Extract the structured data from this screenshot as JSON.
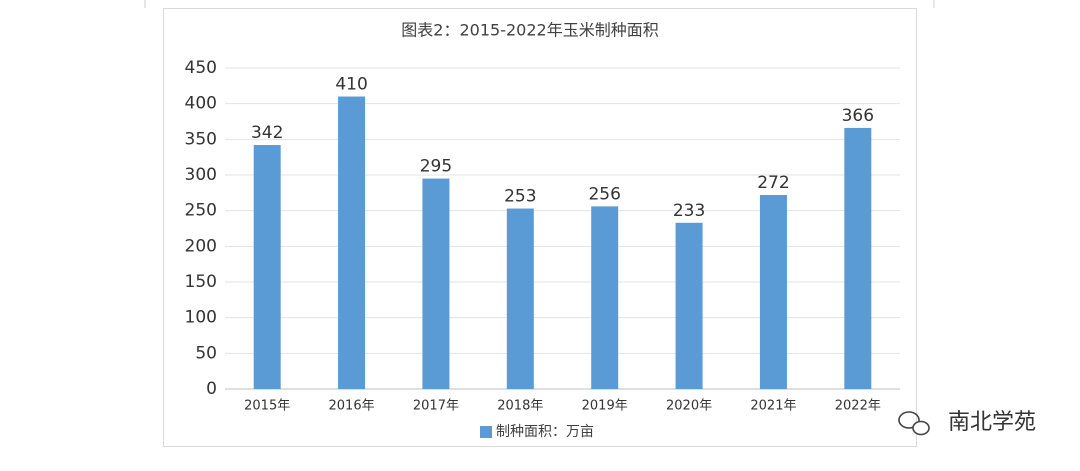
{
  "chart_data": {
    "type": "bar",
    "title": "图表2：2015-2022年玉米制种面积",
    "categories": [
      "2015年",
      "2016年",
      "2017年",
      "2018年",
      "2019年",
      "2020年",
      "2021年",
      "2022年"
    ],
    "series": [
      {
        "name": "制种面积：万亩",
        "color": "#5b9bd5",
        "values": [
          342,
          410,
          295,
          253,
          256,
          233,
          272,
          366
        ]
      }
    ],
    "ylim": [
      0,
      450
    ],
    "yticks": [
      0,
      50,
      100,
      150,
      200,
      250,
      300,
      350,
      400,
      450
    ],
    "grid": true,
    "legend": "bottom"
  },
  "watermark": "南北学苑"
}
